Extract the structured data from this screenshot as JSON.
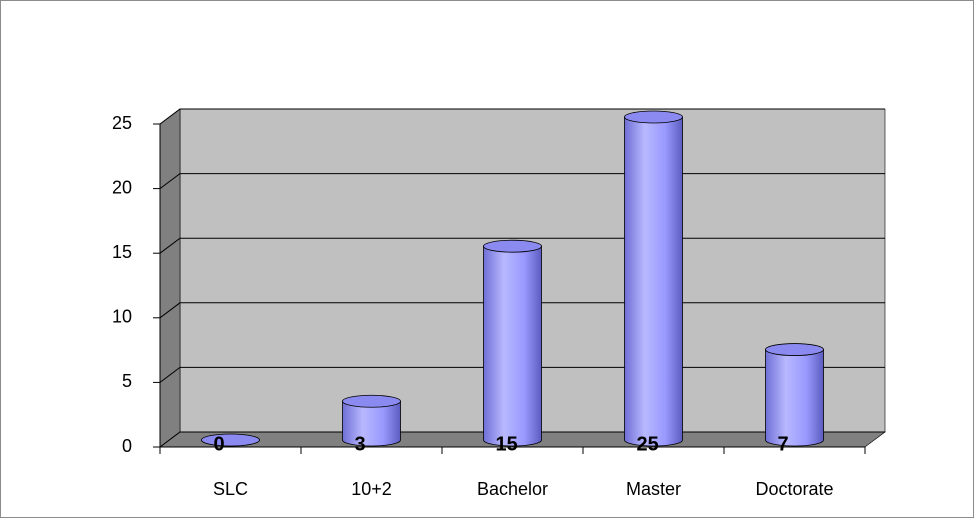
{
  "chart_data": {
    "type": "bar",
    "categories": [
      "SLC",
      "10+2",
      "Bachelor",
      "Master",
      "Doctorate"
    ],
    "values": [
      0,
      3,
      15,
      25,
      7
    ],
    "color": "#9999ff",
    "ylim": [
      0,
      25
    ],
    "yticks": [
      0,
      5,
      10,
      15,
      20,
      25
    ],
    "grid": true
  }
}
